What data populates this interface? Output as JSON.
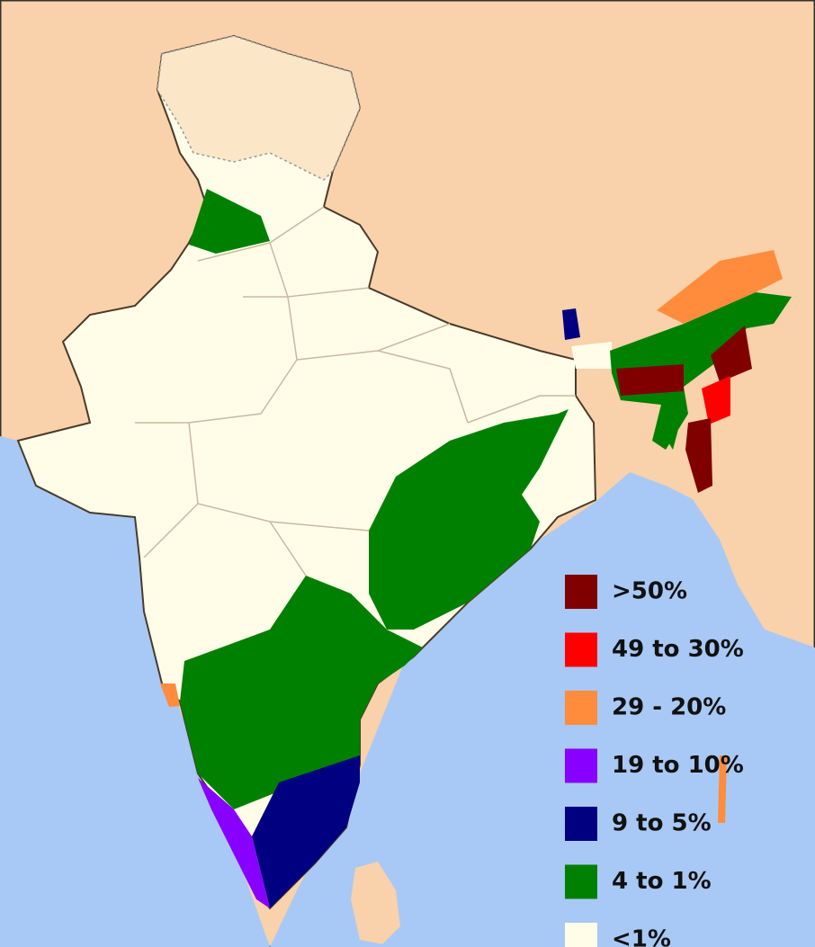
{
  "legend": {
    "items": [
      {
        "label": ">50%",
        "color": "#800000"
      },
      {
        "label": "49 to 30%",
        "color": "#ff0000"
      },
      {
        "label": "29 - 20%",
        "color": "#ff8c3c"
      },
      {
        "label": "19 to 10%",
        "color": "#8800ff"
      },
      {
        "label": "9 to 5%",
        "color": "#000080"
      },
      {
        "label": "4 to 1%",
        "color": "#008000"
      },
      {
        "label": "<1%",
        "color": "#fffde8"
      }
    ]
  }
}
